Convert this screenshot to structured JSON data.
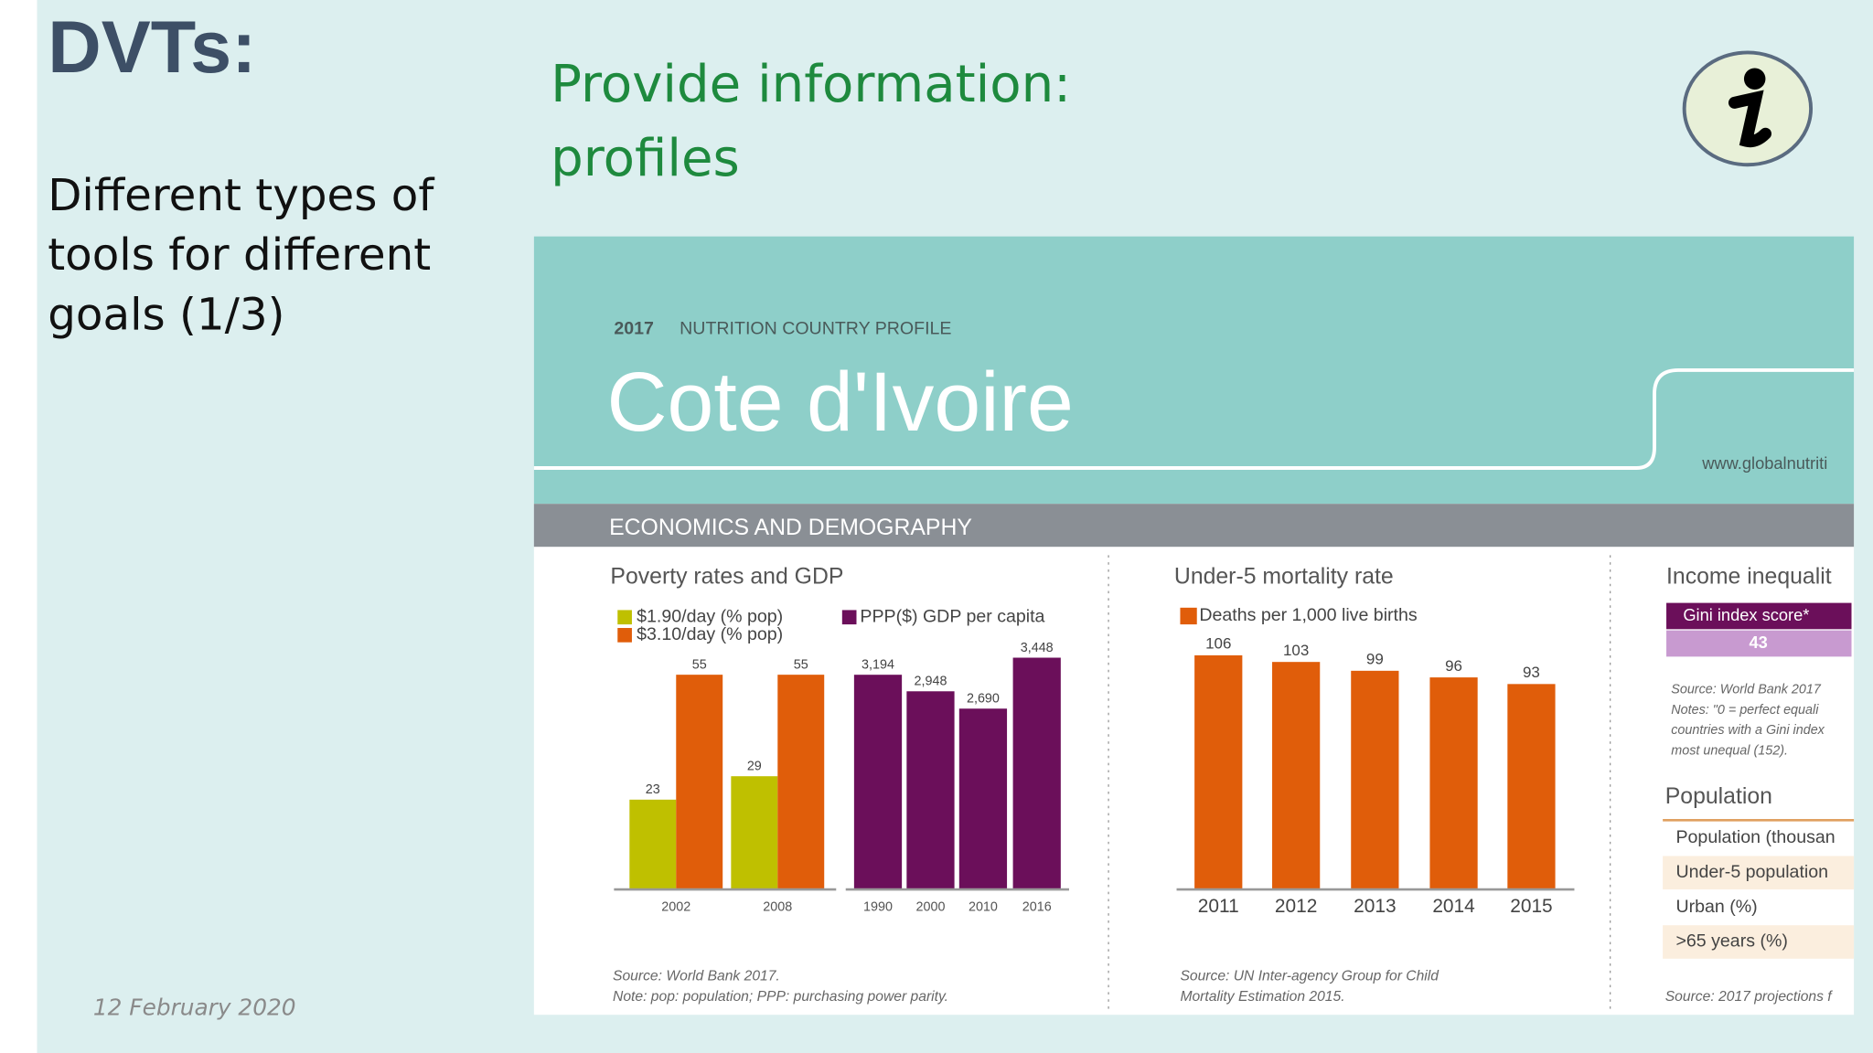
{
  "slide": {
    "title": "DVTs:",
    "subtitle_lines": [
      "Different types of",
      "tools for different",
      "goals (1/3)"
    ],
    "heading_lines": [
      "Provide information:",
      "profiles"
    ],
    "date": "12 February 2020"
  },
  "profile": {
    "year": "2017",
    "label": "NUTRITION COUNTRY PROFILE",
    "country": "Cote d'Ivoire",
    "url": "www.globalnutriti",
    "section": "ECONOMICS AND DEMOGRAPHY",
    "poverty": {
      "title": "Poverty rates and GDP",
      "categories": [
        "2002",
        "2008"
      ],
      "series": [
        {
          "name": "$1.90/day (% pop)",
          "color": "#bfc000",
          "values": [
            23,
            29
          ]
        },
        {
          "name": "$3.10/day (% pop)",
          "color": "#e05d0a",
          "values": [
            55,
            55
          ]
        }
      ],
      "gdp": {
        "name": "PPP($) GDP per capita",
        "color": "#6b0f5a",
        "categories": [
          "1990",
          "2000",
          "2010",
          "2016"
        ],
        "values": [
          3194,
          2948,
          2690,
          3448
        ],
        "value_labels": [
          "3,194",
          "2,948",
          "2,690",
          "3,448"
        ]
      },
      "source": "Source: World Bank 2017.",
      "note": "Note: pop: population; PPP: purchasing power parity."
    },
    "mortality": {
      "title": "Under-5 mortality rate",
      "series_name": "Deaths per 1,000 live births",
      "color": "#e05d0a",
      "categories": [
        "2011",
        "2012",
        "2013",
        "2014",
        "2015"
      ],
      "values": [
        106,
        103,
        99,
        96,
        93
      ],
      "source_lines": [
        "Source: UN Inter-agency Group for Child",
        "Mortality Estimation 2015."
      ]
    },
    "inequality": {
      "title": "Income inequalit",
      "gini_label": "Gini index score*",
      "gini_value": 43,
      "notes": [
        "Source: World Bank 2017",
        "Notes: \"0 = perfect equali",
        "countries with a Gini index",
        "most unequal (152)."
      ]
    },
    "population": {
      "title": "Population",
      "rows": [
        "Population (thousan",
        "Under-5 population",
        "Urban (%)",
        ">65 years (%)"
      ],
      "source": "Source: 2017 projections f"
    }
  }
}
